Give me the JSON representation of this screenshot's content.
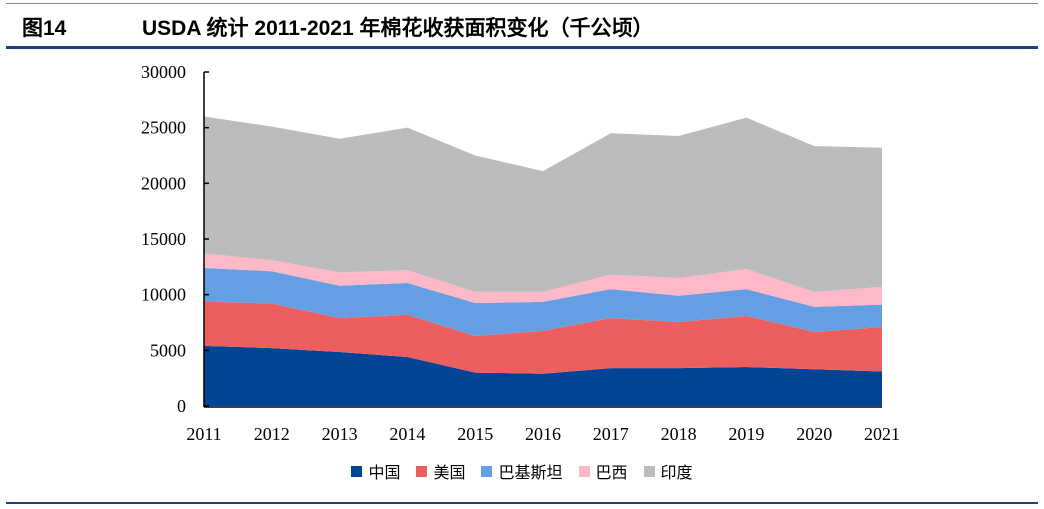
{
  "header": {
    "figure_label": "图14",
    "title": "USDA 统计 2011-2021 年棉花收获面积变化（千公顷）"
  },
  "chart_data": {
    "type": "area",
    "stacked": true,
    "title": "USDA 统计 2011-2021 年棉花收获面积变化（千公顷）",
    "categories": [
      "2011",
      "2012",
      "2013",
      "2014",
      "2015",
      "2016",
      "2017",
      "2018",
      "2019",
      "2020",
      "2021"
    ],
    "ylim": [
      0,
      30000
    ],
    "yticks": [
      "0",
      "5000",
      "10000",
      "15000",
      "20000",
      "25000",
      "30000"
    ],
    "grid": false,
    "legend_position": "bottom",
    "series": [
      {
        "name": "中国",
        "color": "#004595",
        "values": [
          5400,
          5200,
          4850,
          4400,
          3000,
          2900,
          3400,
          3400,
          3500,
          3300,
          3100
        ]
      },
      {
        "name": "美国",
        "color": "#ED5F5F",
        "values": [
          4000,
          4000,
          3050,
          3800,
          3300,
          3850,
          4500,
          4150,
          4600,
          3350,
          4000
        ]
      },
      {
        "name": "巴基斯坦",
        "color": "#659FE3",
        "values": [
          3000,
          2900,
          2900,
          2850,
          2950,
          2600,
          2600,
          2350,
          2400,
          2250,
          2000
        ]
      },
      {
        "name": "巴西",
        "color": "#FDB9C8",
        "values": [
          1300,
          1000,
          1200,
          1150,
          1000,
          900,
          1300,
          1600,
          1800,
          1350,
          1600
        ]
      },
      {
        "name": "印度",
        "color": "#BCBCBC",
        "values": [
          12300,
          12000,
          12000,
          12800,
          12250,
          10850,
          12700,
          12750,
          13600,
          13100,
          12500
        ]
      }
    ]
  }
}
